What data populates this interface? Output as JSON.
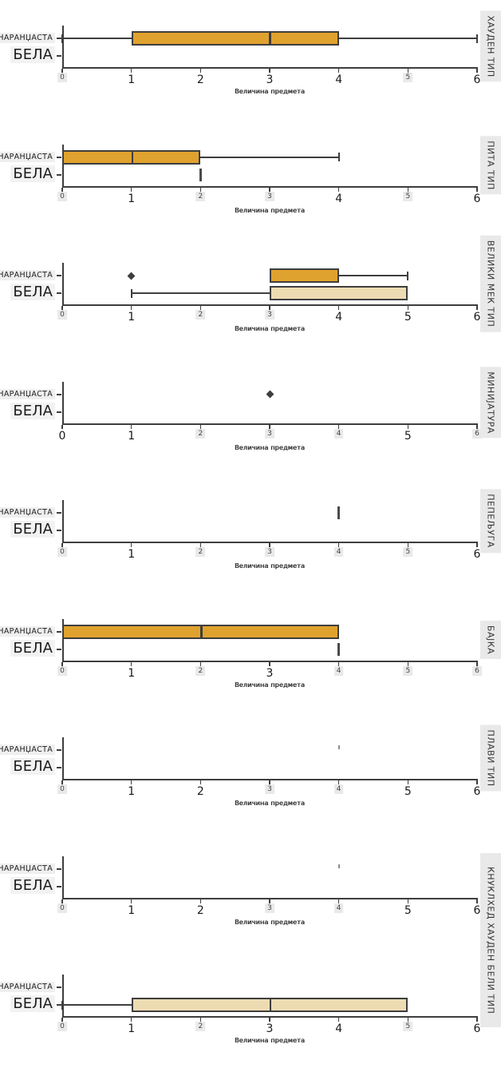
{
  "chart_data": {
    "type": "boxplot",
    "orientation": "horizontal",
    "title": "",
    "x": {
      "label": "Величина предмета",
      "min": 0,
      "max": 6,
      "ticks": [
        "0",
        "1",
        "2",
        "3",
        "4",
        "5",
        "6"
      ]
    },
    "y_categories": [
      "НАРАНЏАСТА",
      "БЕЛА"
    ],
    "colors": {
      "narandzasta_fill": "#e0a22e",
      "bela_fill": "#eddcb3",
      "line": "#3e3e3e",
      "title_strip_bg": "#e9e9e9",
      "label_highlight_bg": "#efefef"
    },
    "facets": [
      {
        "title": "ХАУДЕН ТИП",
        "hl_ticks": [
          0,
          5
        ],
        "marks": [
          {
            "category": "НАРАНЏАСТА",
            "kind": "box",
            "whisker_low": 0,
            "q1": 1,
            "median": 3,
            "q3": 4,
            "whisker_high": 6,
            "outliers": []
          }
        ]
      },
      {
        "title": "ПИТА ТИП",
        "hl_ticks": [
          0,
          2,
          3,
          5
        ],
        "marks": [
          {
            "category": "НАРАНЏАСТА",
            "kind": "box",
            "whisker_low": 0,
            "q1": 0,
            "median": 1,
            "q3": 2,
            "whisker_high": 4,
            "outliers": []
          },
          {
            "category": "БЕЛА",
            "kind": "value-line",
            "value": 2
          }
        ]
      },
      {
        "title": "ВЕЛИКИ МЕК ТИП",
        "hl_ticks": [
          0,
          2,
          3
        ],
        "marks": [
          {
            "category": "НАРАНЏАСТА",
            "kind": "box",
            "whisker_low": 3,
            "q1": 3,
            "median": 3,
            "q3": 4,
            "whisker_high": 5,
            "outliers": [
              1
            ]
          },
          {
            "category": "БЕЛА",
            "kind": "box",
            "whisker_low": 1,
            "q1": 3,
            "median": 3,
            "q3": 5,
            "whisker_high": 5,
            "outliers": []
          }
        ]
      },
      {
        "title": "МИНИЈАТУРА",
        "hl_ticks": [
          2,
          3,
          4,
          6
        ],
        "marks": [
          {
            "category": "НАРАНЏАСТА",
            "kind": "outlier",
            "value": 3
          }
        ]
      },
      {
        "title": "ПЕПЕЉУГА",
        "hl_ticks": [
          0,
          2,
          3,
          4,
          5
        ],
        "marks": [
          {
            "category": "НАРАНЏАСТА",
            "kind": "value-line",
            "value": 4
          }
        ]
      },
      {
        "title": "БАЈКА",
        "hl_ticks": [
          0,
          2,
          4,
          5,
          6
        ],
        "marks": [
          {
            "category": "НАРАНЏАСТА",
            "kind": "box",
            "whisker_low": 0,
            "q1": 0,
            "median": 2,
            "q3": 4,
            "whisker_high": 4,
            "outliers": []
          },
          {
            "category": "БЕЛА",
            "kind": "value-line",
            "value": 4
          }
        ]
      },
      {
        "title": "ПЛАВИ ТИП",
        "hl_ticks": [
          0,
          3,
          4
        ],
        "marks": [
          {
            "category": "НАРАНЏАСТА",
            "kind": "faint-dot",
            "value": 4
          }
        ]
      },
      {
        "title": "КНУКЛХЕД ХАУДЕН БЕЛИ ТИП",
        "tall_title": true,
        "hl_ticks": [
          0,
          3,
          4
        ],
        "marks": [
          {
            "category": "НАРАНЏАСТА",
            "kind": "faint-dot",
            "value": 4
          }
        ]
      },
      {
        "title": "",
        "hl_ticks": [
          0,
          2,
          5
        ],
        "marks": [
          {
            "category": "БЕЛА",
            "kind": "box",
            "whisker_low": 0,
            "q1": 1,
            "median": 3,
            "q3": 5,
            "whisker_high": 5,
            "outliers": []
          }
        ]
      }
    ]
  }
}
